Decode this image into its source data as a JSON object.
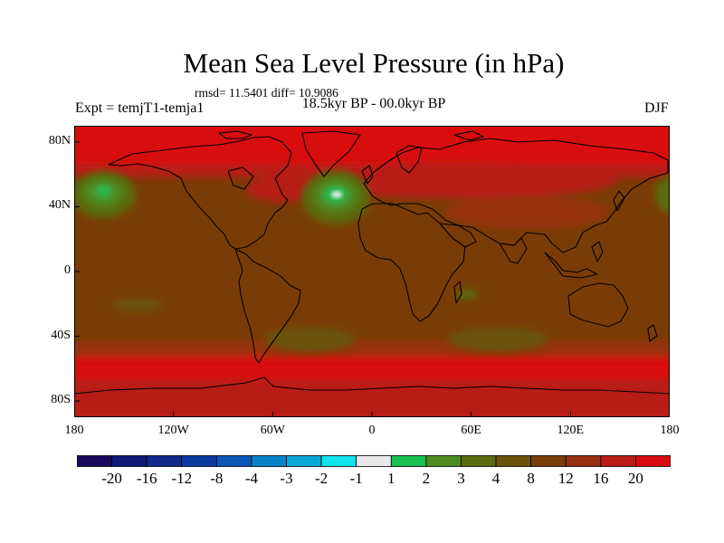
{
  "title": "Mean Sea Level Pressure (in hPa)",
  "stats_line": "rmsd= 11.5401 diff= 10.9086",
  "period": "18.5kyr BP - 00.0kyr BP",
  "experiment": "Expt = temjT1-temja1",
  "season": "DJF",
  "map": {
    "projection": "cylindrical-equidistant",
    "lat_range": [
      -90,
      90
    ],
    "lon_range": [
      -180,
      180
    ],
    "lat_ticks": [
      {
        "value": 80,
        "label": "80N"
      },
      {
        "value": 40,
        "label": "40N"
      },
      {
        "value": 0,
        "label": "0"
      },
      {
        "value": -40,
        "label": "40S"
      },
      {
        "value": -80,
        "label": "80S"
      }
    ],
    "lon_ticks": [
      {
        "value": -180,
        "label": "180"
      },
      {
        "value": -120,
        "label": "120W"
      },
      {
        "value": -60,
        "label": "60W"
      },
      {
        "value": 0,
        "label": "0"
      },
      {
        "value": 60,
        "label": "60E"
      },
      {
        "value": 120,
        "label": "120E"
      },
      {
        "value": 180,
        "label": "180"
      }
    ],
    "features": [
      {
        "name": "north-pacific-low",
        "lon": -163,
        "lat": 42,
        "level": "1 to 2"
      },
      {
        "name": "north-atlantic-low",
        "lon": -22,
        "lat": 40,
        "level": "-1 to 1"
      },
      {
        "name": "southern-ocean-band",
        "lat_min": -62,
        "lat_max": -45,
        "level": "12 to 20"
      },
      {
        "name": "arctic-high",
        "lat_min": 70,
        "lat_max": 90,
        "level": ">20"
      }
    ]
  },
  "colorbar": {
    "colors": [
      "#1a0a5e",
      "#101a78",
      "#102a8c",
      "#0a3a9e",
      "#0a56b4",
      "#0a82c8",
      "#0aa8d8",
      "#12e2ec",
      "#e8e8e8",
      "#18c050",
      "#4e8a22",
      "#5a6a10",
      "#6a5208",
      "#7a3c06",
      "#963010",
      "#b81c14",
      "#d80c10"
    ],
    "labels": [
      "-20",
      "-16",
      "-12",
      "-8",
      "-4",
      "-3",
      "-2",
      "-1",
      "1",
      "2",
      "3",
      "4",
      "8",
      "12",
      "16",
      "20"
    ]
  }
}
